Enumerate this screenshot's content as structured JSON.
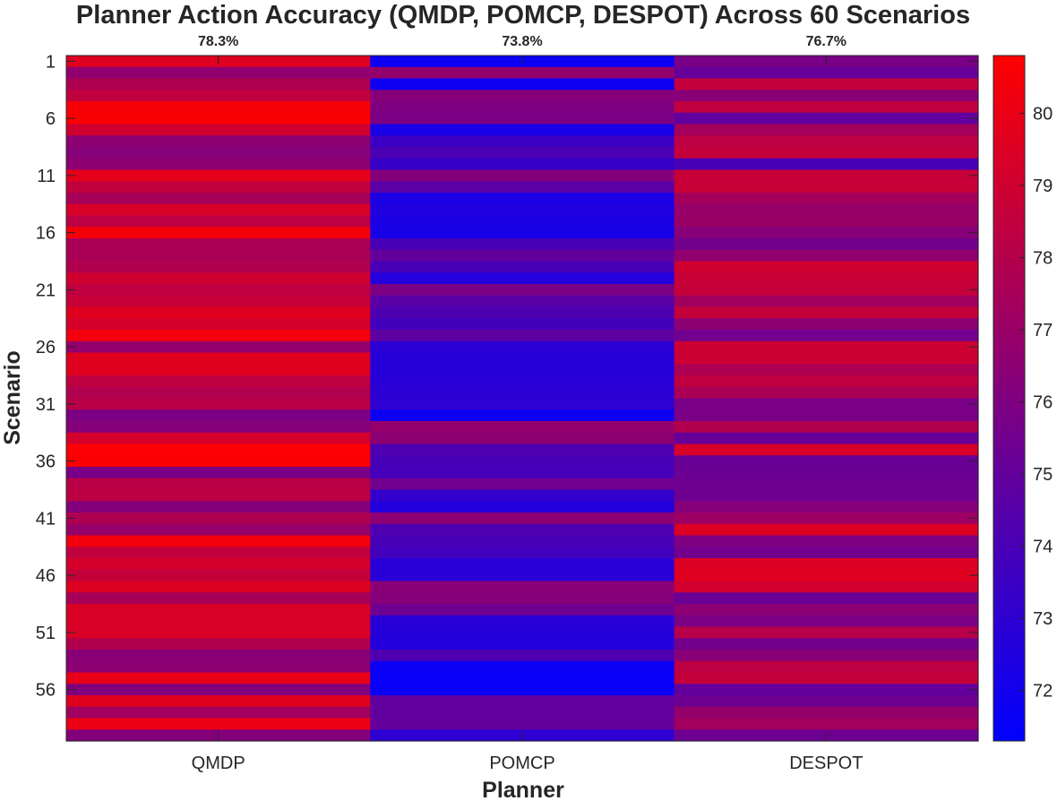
{
  "chart_data": {
    "type": "heatmap",
    "title": "Planner Action Accuracy (QMDP, POMCP, DESPOT) Across 60 Scenarios",
    "xlabel": "Planner",
    "ylabel": "Scenario",
    "columns": [
      "QMDP",
      "POMCP",
      "DESPOT"
    ],
    "column_means": [
      "78.3%",
      "73.8%",
      "76.7%"
    ],
    "y_ticks": [
      "1",
      "6",
      "11",
      "16",
      "21",
      "26",
      "31",
      "36",
      "41",
      "46",
      "51",
      "56"
    ],
    "rows": 60,
    "colormap": {
      "low": "#0000ff",
      "high": "#ff0000"
    },
    "clim": [
      71.3,
      80.8
    ],
    "colorbar_ticks": [
      "72",
      "73",
      "74",
      "75",
      "76",
      "77",
      "78",
      "79",
      "80"
    ],
    "values": {
      "QMDP": [
        79.6,
        76.7,
        77.8,
        78.5,
        80.5,
        80.6,
        79.0,
        76.5,
        76.3,
        76.6,
        79.8,
        78.5,
        77.5,
        79.3,
        78.3,
        80.4,
        77.6,
        77.6,
        77.9,
        79.0,
        78.4,
        78.7,
        79.6,
        79.2,
        80.3,
        76.8,
        79.6,
        79.6,
        78.4,
        77.9,
        78.2,
        75.9,
        76.3,
        79.2,
        80.7,
        80.6,
        75.8,
        78.2,
        78.3,
        76.2,
        77.8,
        76.9,
        80.3,
        78.5,
        79.2,
        78.6,
        79.5,
        77.5,
        79.4,
        79.4,
        79.4,
        77.9,
        76.4,
        76.5,
        79.9,
        76.1,
        79.6,
        77.3,
        80.1,
        76.2
      ],
      "POMCP": [
        71.7,
        76.8,
        71.8,
        76.3,
        76.0,
        75.9,
        72.2,
        73.5,
        74.1,
        73.3,
        76.2,
        74.7,
        72.3,
        72.5,
        72.3,
        72.2,
        74.0,
        75.0,
        74.0,
        72.6,
        75.9,
        74.6,
        74.2,
        73.8,
        74.8,
        72.9,
        72.7,
        72.7,
        72.8,
        72.9,
        73.0,
        71.8,
        76.8,
        76.5,
        74.2,
        74.0,
        73.9,
        75.5,
        73.2,
        72.6,
        76.5,
        74.2,
        74.0,
        73.8,
        72.8,
        72.8,
        76.4,
        76.3,
        75.4,
        72.8,
        72.7,
        72.6,
        74.2,
        71.7,
        71.6,
        71.6,
        74.9,
        74.9,
        75.0,
        73.0
      ],
      "DESPOT": [
        75.8,
        75.1,
        78.6,
        76.4,
        78.4,
        74.9,
        77.4,
        78.3,
        78.6,
        74.0,
        78.7,
        78.7,
        77.4,
        76.9,
        77.0,
        76.3,
        75.6,
        76.7,
        79.0,
        78.7,
        78.6,
        77.3,
        78.6,
        76.5,
        75.5,
        78.9,
        78.9,
        77.7,
        78.4,
        77.6,
        75.8,
        75.8,
        77.9,
        75.1,
        79.3,
        75.2,
        75.3,
        75.4,
        75.4,
        76.3,
        77.1,
        79.5,
        76.0,
        75.6,
        79.5,
        79.6,
        79.1,
        75.3,
        76.5,
        75.9,
        78.1,
        75.6,
        76.4,
        78.3,
        78.6,
        75.0,
        75.4,
        76.8,
        77.3,
        75.4
      ]
    }
  }
}
